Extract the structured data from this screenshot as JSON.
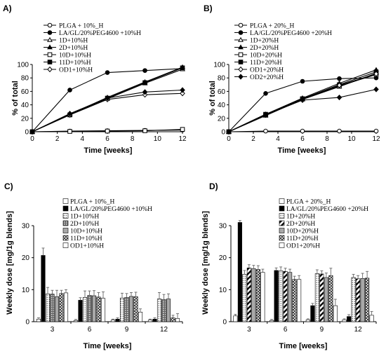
{
  "chart_data": [
    {
      "type": "line",
      "panel_label": "A)",
      "xlabel": "Time [weeks]",
      "ylabel": "% of total",
      "xlim": [
        0,
        12
      ],
      "ylim": [
        0,
        100
      ],
      "xticks": [
        0,
        2,
        4,
        6,
        8,
        10,
        12
      ],
      "yticks": [
        0,
        20,
        40,
        60,
        80,
        100
      ],
      "grid": false,
      "legend_position": "top-left",
      "series": [
        {
          "name": "PLGA + 10%_H",
          "marker": "circle-open",
          "x": [
            0,
            3,
            6,
            9,
            12
          ],
          "y": [
            0,
            1,
            1.5,
            2,
            2.5
          ]
        },
        {
          "name": "LA/GL/20%PEG4600 +10%H",
          "marker": "circle-filled",
          "x": [
            0,
            3,
            6,
            9,
            12
          ],
          "y": [
            0,
            62,
            88,
            91,
            94
          ]
        },
        {
          "name": "1D+10%H",
          "marker": "triangle-open",
          "x": [
            0,
            3,
            6,
            9,
            12
          ],
          "y": [
            0,
            26,
            49,
            72,
            93
          ]
        },
        {
          "name": "2D+10%H",
          "marker": "triangle-filled",
          "x": [
            0,
            3,
            6,
            9,
            12
          ],
          "y": [
            0,
            26,
            51,
            74,
            96
          ]
        },
        {
          "name": "10D+10%H",
          "marker": "square-open",
          "x": [
            0,
            3,
            6,
            9,
            12
          ],
          "y": [
            0,
            0.5,
            1,
            1.5,
            3.5
          ]
        },
        {
          "name": "11D+10%H",
          "marker": "square-filled",
          "x": [
            0,
            3,
            6,
            9,
            12
          ],
          "y": [
            0,
            25,
            50,
            73,
            95
          ]
        },
        {
          "name": "OD1+10%H",
          "marker": "diamond-open",
          "x": [
            0,
            3,
            6,
            9,
            12
          ],
          "y": [
            0,
            25,
            48,
            55,
            57
          ]
        },
        {
          "name": "",
          "marker": "diamond-filled",
          "x": [
            0,
            3,
            6,
            9,
            12
          ],
          "y": [
            0,
            27,
            50,
            59,
            62
          ]
        }
      ]
    },
    {
      "type": "line",
      "panel_label": "B)",
      "xlabel": "Time [weeks]",
      "ylabel": "% of total",
      "xlim": [
        0,
        12
      ],
      "ylim": [
        0,
        100
      ],
      "xticks": [
        0,
        2,
        4,
        6,
        8,
        10,
        12
      ],
      "yticks": [
        0,
        20,
        40,
        60,
        80,
        100
      ],
      "grid": false,
      "legend_position": "top-left",
      "series": [
        {
          "name": "PLGA + 20%_H",
          "marker": "circle-open",
          "x": [
            0,
            3,
            6,
            9,
            12
          ],
          "y": [
            0,
            1,
            1,
            1,
            1
          ]
        },
        {
          "name": "LA/GL/20%PEG4600 +20%H",
          "marker": "circle-filled",
          "x": [
            0,
            3,
            6,
            9,
            12
          ],
          "y": [
            0,
            57,
            75,
            79,
            80
          ]
        },
        {
          "name": "1D+20%H",
          "marker": "triangle-open",
          "x": [
            0,
            3,
            6,
            9,
            12
          ],
          "y": [
            0,
            24,
            48,
            67,
            87
          ]
        },
        {
          "name": "2D+20%H",
          "marker": "triangle-filled",
          "x": [
            0,
            3,
            6,
            9,
            12
          ],
          "y": [
            0,
            26,
            50,
            72,
            92
          ]
        },
        {
          "name": "10D+20%H",
          "marker": "square-open",
          "x": [
            0,
            3,
            6,
            9,
            12
          ],
          "y": [
            0,
            25,
            49,
            68,
            85
          ]
        },
        {
          "name": "11D+20%H",
          "marker": "square-filled",
          "x": [
            0,
            3,
            6,
            9,
            12
          ],
          "y": [
            0,
            26,
            49,
            70,
            89
          ]
        },
        {
          "name": "OD1+20%H",
          "marker": "diamond-open",
          "x": [
            0,
            3,
            6,
            9,
            12
          ],
          "y": [
            0,
            25,
            48,
            69,
            86
          ]
        },
        {
          "name": "OD2+20%H",
          "marker": "diamond-filled",
          "x": [
            0,
            3,
            6,
            9,
            12
          ],
          "y": [
            0,
            25,
            47,
            51,
            63
          ]
        }
      ]
    },
    {
      "type": "bar",
      "panel_label": "C)",
      "xlabel": "Time [weeks]",
      "ylabel": "Weekly dose [mg/1g blends]",
      "categories": [
        "3",
        "6",
        "9",
        "12"
      ],
      "ylim": [
        0,
        30
      ],
      "yticks": [
        0,
        10,
        20,
        30
      ],
      "grid": false,
      "legend_position": "top-right",
      "series": [
        {
          "name": "PLGA + 10%_H",
          "pattern": "white",
          "values": [
            0.8,
            0.4,
            0.5,
            0.5
          ],
          "errors": [
            0.4,
            0.3,
            0.3,
            0.3
          ]
        },
        {
          "name": "LA/GL/20%PEG4600 +10%H",
          "pattern": "black",
          "values": [
            20.7,
            6.7,
            0.8,
            0.8
          ],
          "errors": [
            2.3,
            0.8,
            0.4,
            0.4
          ]
        },
        {
          "name": "1D+10%H",
          "pattern": "dots",
          "values": [
            8.7,
            7.6,
            7.4,
            7.1
          ],
          "errors": [
            2.0,
            2.0,
            1.5,
            2.0
          ]
        },
        {
          "name": "2D+10%H",
          "pattern": "grid",
          "values": [
            8.6,
            8.2,
            7.6,
            6.9
          ],
          "errors": [
            1.2,
            1.4,
            1.2,
            1.6
          ]
        },
        {
          "name": "10D+10%H",
          "pattern": "grey",
          "values": [
            7.8,
            8.1,
            7.9,
            7.1
          ],
          "errors": [
            2.0,
            1.6,
            1.2,
            1.6
          ]
        },
        {
          "name": "11D+10%H",
          "pattern": "cross",
          "values": [
            8.8,
            7.7,
            7.8,
            1.2
          ],
          "errors": [
            1.0,
            1.4,
            1.4,
            0.8
          ]
        },
        {
          "name": "OD1+10%H",
          "pattern": "white",
          "values": [
            9.0,
            7.3,
            3.0,
            1.0
          ],
          "errors": [
            1.0,
            2.0,
            1.0,
            1.5
          ]
        }
      ]
    },
    {
      "type": "bar",
      "panel_label": "D)",
      "xlabel": "Time [weeks]",
      "ylabel": "Weekly dose [mg/1g blends]",
      "categories": [
        "3",
        "6",
        "9",
        "12"
      ],
      "ylim": [
        0,
        30
      ],
      "yticks": [
        0,
        10,
        20,
        30
      ],
      "grid": false,
      "legend_position": "top-right",
      "series": [
        {
          "name": "PLGA + 20%_H",
          "pattern": "white",
          "values": [
            1.8,
            0.4,
            0.6,
            0.6
          ],
          "errors": [
            0.5,
            0.3,
            0.3,
            0.3
          ]
        },
        {
          "name": "LA/GL/20%PEG4600 +20%H",
          "pattern": "black",
          "values": [
            31.0,
            16.0,
            5.0,
            1.6
          ],
          "errors": [
            0.6,
            0.8,
            0.7,
            0.6
          ]
        },
        {
          "name": "1D+20%H",
          "pattern": "dots",
          "values": [
            14.8,
            15.9,
            15.0,
            13.8
          ],
          "errors": [
            1.2,
            1.2,
            1.2,
            1.0
          ]
        },
        {
          "name": "2D+20%H",
          "pattern": "diag",
          "values": [
            16.8,
            15.7,
            14.9,
            13.4
          ],
          "errors": [
            1.0,
            1.0,
            1.0,
            1.0
          ]
        },
        {
          "name": "10D+20%H",
          "pattern": "grey",
          "values": [
            16.6,
            15.4,
            13.8,
            13.5
          ],
          "errors": [
            1.0,
            1.0,
            1.4,
            1.6
          ]
        },
        {
          "name": "11D+20%H",
          "pattern": "cross",
          "values": [
            16.3,
            13.2,
            14.4,
            13.6
          ],
          "errors": [
            1.2,
            1.0,
            2.3,
            2.1
          ]
        },
        {
          "name": "OD1+20%H",
          "pattern": "white",
          "values": [
            15.4,
            13.2,
            5.0,
            2.0
          ],
          "errors": [
            1.0,
            1.2,
            2.0,
            1.2
          ]
        }
      ]
    }
  ]
}
